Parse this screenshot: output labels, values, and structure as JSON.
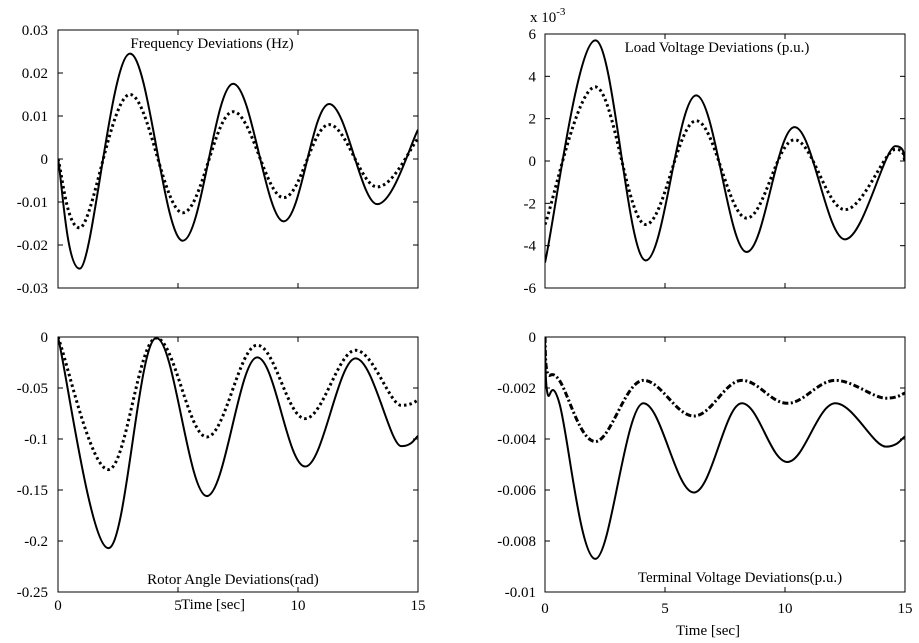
{
  "chart_data": [
    {
      "id": "freq",
      "type": "line",
      "title": "Frequency Deviations (Hz)",
      "xlabel": "",
      "ylabel": "",
      "xlim": [
        0,
        15
      ],
      "ylim": [
        -0.03,
        0.03
      ],
      "x_ticks": [],
      "y_ticks": [
        {
          "value": 0.03,
          "label": "0.03"
        },
        {
          "value": 0.02,
          "label": "0.02"
        },
        {
          "value": 0.01,
          "label": "0.01"
        },
        {
          "value": 0,
          "label": "0"
        },
        {
          "value": -0.01,
          "label": "-0.01"
        },
        {
          "value": -0.02,
          "label": "-0.02"
        },
        {
          "value": -0.03,
          "label": "-0.03"
        }
      ],
      "exponent_label": "",
      "grid": false,
      "series": [
        {
          "style": "solid",
          "x": [
            0,
            0.9,
            3.0,
            5.2,
            7.3,
            9.4,
            11.3,
            13.3,
            15.0
          ],
          "y": [
            0,
            -0.0255,
            0.0245,
            -0.019,
            0.0175,
            -0.0145,
            0.0128,
            -0.0105,
            0.0068
          ]
        },
        {
          "style": "dotted",
          "x": [
            0,
            0.9,
            3.0,
            5.2,
            7.3,
            9.4,
            11.3,
            13.3,
            15.0
          ],
          "y": [
            0,
            -0.016,
            0.015,
            -0.0125,
            0.011,
            -0.009,
            0.008,
            -0.0065,
            0.0048
          ]
        }
      ]
    },
    {
      "id": "loadv",
      "type": "line",
      "title": "Load Voltage Deviations (p.u.)",
      "xlabel": "",
      "ylabel": "",
      "xlim": [
        0,
        15
      ],
      "ylim": [
        -6,
        6
      ],
      "x_ticks": [],
      "y_ticks": [
        {
          "value": 6,
          "label": "6"
        },
        {
          "value": 4,
          "label": "4"
        },
        {
          "value": 2,
          "label": "2"
        },
        {
          "value": 0,
          "label": "0"
        },
        {
          "value": -2,
          "label": "-2"
        },
        {
          "value": -4,
          "label": "-4"
        },
        {
          "value": -6,
          "label": "-6"
        }
      ],
      "exponent_label": "x 10-3",
      "exponent_base": "x 10",
      "exponent_power": "-3",
      "grid": false,
      "series": [
        {
          "style": "solid",
          "x": [
            0,
            2.1,
            4.2,
            6.3,
            8.4,
            10.4,
            12.5,
            14.6,
            15.0
          ],
          "y": [
            -4.8,
            5.7,
            -4.7,
            3.1,
            -4.3,
            1.6,
            -3.7,
            0.7,
            0.0
          ]
        },
        {
          "style": "dotted",
          "x": [
            0,
            2.1,
            4.2,
            6.3,
            8.4,
            10.4,
            12.5,
            14.6,
            15.0
          ],
          "y": [
            -3.0,
            3.5,
            -3.0,
            1.9,
            -2.7,
            1.0,
            -2.3,
            0.55,
            0.0
          ]
        }
      ]
    },
    {
      "id": "rotor",
      "type": "line",
      "title": "Rotor Angle Deviations(rad)",
      "xlabel": "Time [sec]",
      "ylabel": "",
      "xlim": [
        0,
        15
      ],
      "ylim": [
        -0.25,
        0
      ],
      "x_ticks": [
        {
          "value": 0,
          "label": "0"
        },
        {
          "value": 5,
          "label": "5"
        },
        {
          "value": 10,
          "label": "10"
        },
        {
          "value": 15,
          "label": "15"
        }
      ],
      "y_ticks": [
        {
          "value": 0,
          "label": "0"
        },
        {
          "value": -0.05,
          "label": "-0.05"
        },
        {
          "value": -0.1,
          "label": "-0.1"
        },
        {
          "value": -0.15,
          "label": "-0.15"
        },
        {
          "value": -0.2,
          "label": "-0.2"
        },
        {
          "value": -0.25,
          "label": "-0.25"
        }
      ],
      "exponent_label": "",
      "grid": false,
      "series": [
        {
          "style": "solid",
          "x": [
            0,
            2.1,
            4.1,
            6.2,
            8.3,
            10.3,
            12.4,
            14.3,
            15.0
          ],
          "y": [
            0,
            -0.207,
            -0.001,
            -0.156,
            -0.02,
            -0.127,
            -0.021,
            -0.107,
            -0.097
          ]
        },
        {
          "style": "dotted",
          "x": [
            0,
            2.1,
            4.1,
            6.2,
            8.3,
            10.3,
            12.4,
            14.3,
            15.0
          ],
          "y": [
            0,
            -0.13,
            -0.001,
            -0.098,
            -0.008,
            -0.08,
            -0.013,
            -0.067,
            -0.062
          ]
        }
      ]
    },
    {
      "id": "termv",
      "type": "line",
      "title": "Terminal Voltage Deviations(p.u.)",
      "xlabel": "Time [sec]",
      "ylabel": "",
      "xlim": [
        0,
        15
      ],
      "ylim": [
        -0.01,
        0
      ],
      "x_ticks": [
        {
          "value": 0,
          "label": "0"
        },
        {
          "value": 5,
          "label": "5"
        },
        {
          "value": 10,
          "label": "10"
        },
        {
          "value": 15,
          "label": "15"
        }
      ],
      "y_ticks": [
        {
          "value": 0,
          "label": "0"
        },
        {
          "value": -0.002,
          "label": "-0.002"
        },
        {
          "value": -0.004,
          "label": "-0.004"
        },
        {
          "value": -0.006,
          "label": "-0.006"
        },
        {
          "value": -0.008,
          "label": "-0.008"
        },
        {
          "value": -0.01,
          "label": "-0.01"
        }
      ],
      "exponent_label": "",
      "grid": false,
      "series": [
        {
          "style": "solid",
          "x": [
            0,
            0.1,
            0.6,
            2.1,
            4.1,
            6.2,
            8.2,
            10.1,
            12.1,
            14.2,
            15.0
          ],
          "y": [
            0,
            -0.0022,
            -0.0026,
            -0.0087,
            -0.0026,
            -0.0061,
            -0.0026,
            -0.0049,
            -0.0026,
            -0.0043,
            -0.0039
          ]
        },
        {
          "style": "dashdot",
          "x": [
            0,
            0.1,
            0.6,
            2.1,
            4.1,
            6.2,
            8.2,
            10.1,
            12.1,
            14.2,
            15.0
          ],
          "y": [
            0,
            -0.0014,
            -0.0017,
            -0.0041,
            -0.0017,
            -0.0031,
            -0.0017,
            -0.0026,
            -0.0017,
            -0.0024,
            -0.0022
          ]
        }
      ]
    }
  ]
}
